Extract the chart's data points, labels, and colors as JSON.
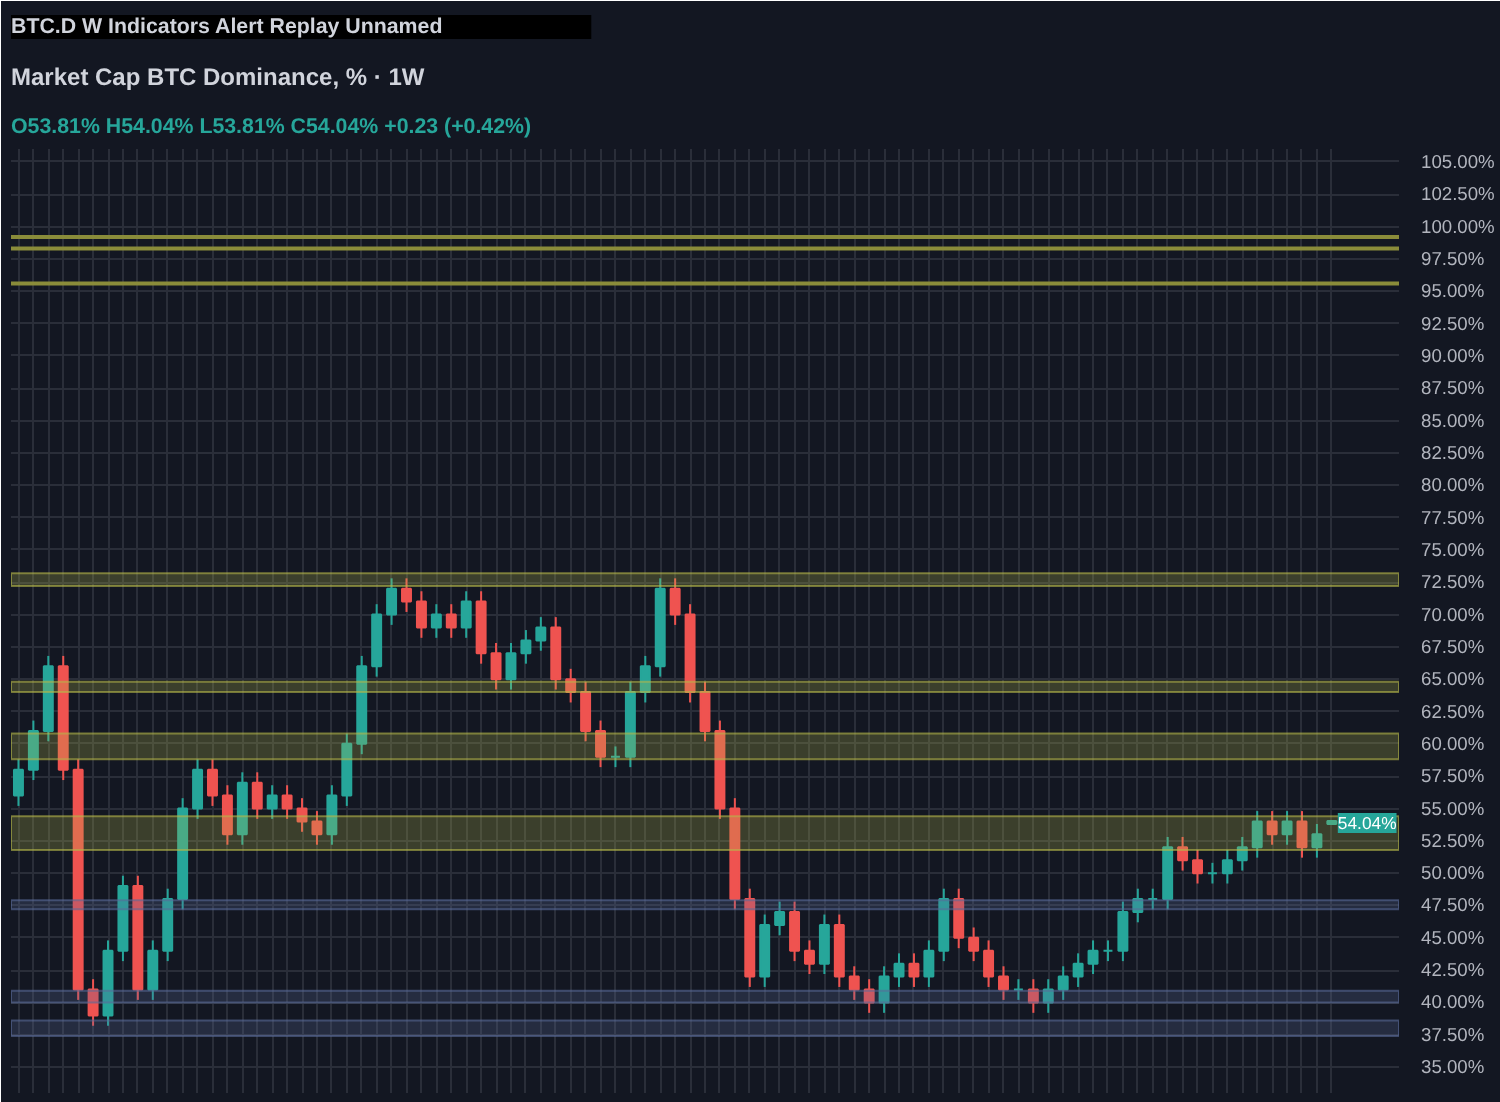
{
  "chart_data": {
    "type": "candlestick",
    "title": "Market Cap BTC Dominance, % · 1W",
    "subtitle": "O53.81% H54.04% L53.81% C54.04% +0.23 (+0.42%)",
    "annotations": [
      "BTC.D",
      "W",
      "Indicators",
      "Alert",
      "Replay",
      "Unnamed",
      {
        "text": "54.04%",
        "y": 54.04
      }
    ],
    "categories": [
      null,
      null,
      null,
      null,
      null,
      null,
      null,
      null,
      null,
      null,
      null,
      null,
      null,
      null,
      null,
      null,
      null,
      null,
      null,
      null,
      null,
      null,
      null,
      null,
      null,
      null,
      null,
      null,
      null,
      null,
      null,
      null,
      null,
      null,
      null,
      null,
      null,
      null,
      null,
      null,
      null,
      null,
      null,
      null,
      null,
      null,
      null,
      null,
      null,
      null,
      null,
      null,
      null,
      null,
      null,
      null,
      null,
      null,
      null,
      null,
      null,
      null,
      null,
      null,
      null,
      null,
      null,
      null,
      null,
      null,
      null,
      null,
      null,
      null,
      null,
      null,
      null,
      null,
      null,
      null,
      null,
      null,
      null,
      null,
      null,
      null,
      null,
      null,
      null
    ],
    "ohlc": [
      [
        56,
        58.8,
        55.2,
        58
      ],
      [
        58,
        61.8,
        57.2,
        61
      ],
      [
        61,
        66.8,
        60.2,
        66
      ],
      [
        66,
        66.8,
        57.2,
        58
      ],
      [
        58,
        58.8,
        40.2,
        41
      ],
      [
        41,
        41.8,
        38.2,
        39
      ],
      [
        39,
        44.8,
        38.2,
        44
      ],
      [
        44,
        49.8,
        43.2,
        49
      ],
      [
        49,
        49.8,
        40.2,
        41
      ],
      [
        41,
        44.8,
        40.2,
        44
      ],
      [
        44,
        48.8,
        43.2,
        48
      ],
      [
        48,
        55.8,
        47.2,
        55
      ],
      [
        55,
        58.8,
        54.2,
        58
      ],
      [
        58,
        58.8,
        55.2,
        56
      ],
      [
        56,
        56.8,
        52.2,
        53
      ],
      [
        53,
        57.8,
        52.2,
        57
      ],
      [
        57,
        57.8,
        54.2,
        55
      ],
      [
        55,
        56.8,
        54.2,
        56
      ],
      [
        56,
        56.8,
        54.2,
        55
      ],
      [
        55,
        55.8,
        53.2,
        54
      ],
      [
        54,
        54.8,
        52.2,
        53
      ],
      [
        53,
        56.8,
        52.2,
        56
      ],
      [
        56,
        60.8,
        55.2,
        60
      ],
      [
        60,
        66.8,
        59.2,
        66
      ],
      [
        66,
        70.8,
        65.2,
        70
      ],
      [
        70,
        72.8,
        69.2,
        72
      ],
      [
        72,
        72.8,
        70.2,
        71
      ],
      [
        71,
        71.8,
        68.2,
        69
      ],
      [
        69,
        70.8,
        68.2,
        70
      ],
      [
        70,
        70.8,
        68.2,
        69
      ],
      [
        69,
        71.8,
        68.2,
        71
      ],
      [
        71,
        71.8,
        66.2,
        67
      ],
      [
        67,
        67.8,
        64.2,
        65
      ],
      [
        65,
        67.8,
        64.2,
        67
      ],
      [
        67,
        68.8,
        66.2,
        68
      ],
      [
        68,
        69.8,
        67.2,
        69
      ],
      [
        69,
        69.8,
        64.2,
        65
      ],
      [
        65,
        65.8,
        63.2,
        64
      ],
      [
        64,
        64.8,
        60.2,
        61
      ],
      [
        61,
        61.8,
        58.2,
        59
      ],
      [
        59,
        59.8,
        58.2,
        59
      ],
      [
        59,
        64.8,
        58.2,
        64
      ],
      [
        64,
        66.8,
        63.2,
        66
      ],
      [
        66,
        72.8,
        65.2,
        72
      ],
      [
        72,
        72.8,
        69.2,
        70
      ],
      [
        70,
        70.8,
        63.2,
        64
      ],
      [
        64,
        64.8,
        60.2,
        61
      ],
      [
        61,
        61.8,
        54.2,
        55
      ],
      [
        55,
        55.8,
        47.2,
        48
      ],
      [
        48,
        48.8,
        41.2,
        42
      ],
      [
        42,
        46.8,
        41.2,
        46
      ],
      [
        46,
        47.8,
        45.2,
        47
      ],
      [
        47,
        47.8,
        43.2,
        44
      ],
      [
        44,
        44.8,
        42.2,
        43
      ],
      [
        43,
        46.8,
        42.2,
        46
      ],
      [
        46,
        46.8,
        41.2,
        42
      ],
      [
        42,
        42.8,
        40.2,
        41
      ],
      [
        41,
        41.8,
        39.2,
        40
      ],
      [
        40,
        42.8,
        39.2,
        42
      ],
      [
        42,
        43.8,
        41.2,
        43
      ],
      [
        43,
        43.8,
        41.2,
        42
      ],
      [
        42,
        44.8,
        41.2,
        44
      ],
      [
        44,
        48.8,
        43.2,
        48
      ],
      [
        48,
        48.8,
        44.2,
        45
      ],
      [
        45,
        45.8,
        43.2,
        44
      ],
      [
        44,
        44.8,
        41.2,
        42
      ],
      [
        42,
        42.8,
        40.2,
        41
      ],
      [
        41,
        41.8,
        40.2,
        41
      ],
      [
        41,
        41.8,
        39.2,
        40
      ],
      [
        40,
        41.8,
        39.2,
        41
      ],
      [
        41,
        42.8,
        40.2,
        42
      ],
      [
        42,
        43.8,
        41.2,
        43
      ],
      [
        43,
        44.8,
        42.2,
        44
      ],
      [
        44,
        44.8,
        43.2,
        44
      ],
      [
        44,
        47.8,
        43.2,
        47
      ],
      [
        47,
        48.8,
        46.2,
        48
      ],
      [
        48,
        48.8,
        47.2,
        48
      ],
      [
        48,
        52.8,
        47.2,
        52
      ],
      [
        52,
        52.8,
        50.2,
        51
      ],
      [
        51,
        51.8,
        49.2,
        50
      ],
      [
        50,
        50.8,
        49.2,
        50
      ],
      [
        50,
        51.8,
        49.2,
        51
      ],
      [
        51,
        52.8,
        50.2,
        52
      ],
      [
        52,
        54.8,
        51.2,
        54
      ],
      [
        54,
        54.8,
        52.2,
        53
      ],
      [
        53,
        54.8,
        52.2,
        54
      ],
      [
        54,
        54.8,
        51.2,
        52
      ],
      [
        52,
        53.8,
        51.2,
        53
      ],
      [
        53.81,
        54.04,
        53.81,
        54.04
      ]
    ],
    "colors": [
      "#26a69a",
      "#26a69a",
      "#26a69a",
      "#ef5350",
      "#ef5350",
      "#ef5350",
      "#26a69a",
      "#26a69a",
      "#ef5350",
      "#26a69a",
      "#26a69a",
      "#26a69a",
      "#26a69a",
      "#ef5350",
      "#ef5350",
      "#26a69a",
      "#ef5350",
      "#26a69a",
      "#ef5350",
      "#ef5350",
      "#ef5350",
      "#26a69a",
      "#26a69a",
      "#26a69a",
      "#26a69a",
      "#26a69a",
      "#ef5350",
      "#ef5350",
      "#26a69a",
      "#ef5350",
      "#26a69a",
      "#ef5350",
      "#ef5350",
      "#26a69a",
      "#26a69a",
      "#26a69a",
      "#ef5350",
      "#ef5350",
      "#ef5350",
      "#ef5350",
      "#26a69a",
      "#26a69a",
      "#26a69a",
      "#26a69a",
      "#ef5350",
      "#ef5350",
      "#ef5350",
      "#ef5350",
      "#ef5350",
      "#ef5350",
      "#26a69a",
      "#26a69a",
      "#ef5350",
      "#ef5350",
      "#26a69a",
      "#ef5350",
      "#ef5350",
      "#ef5350",
      "#26a69a",
      "#26a69a",
      "#ef5350",
      "#26a69a",
      "#26a69a",
      "#ef5350",
      "#ef5350",
      "#ef5350",
      "#ef5350",
      "#26a69a",
      "#ef5350",
      "#26a69a",
      "#26a69a",
      "#26a69a",
      "#26a69a",
      "#26a69a",
      "#26a69a",
      "#26a69a",
      "#26a69a",
      "#26a69a",
      "#ef5350",
      "#ef5350",
      "#26a69a",
      "#26a69a",
      "#26a69a",
      "#26a69a",
      "#ef5350",
      "#26a69a",
      "#ef5350",
      "#26a69a",
      "#26a69a"
    ],
    "ylim": [
      33,
      106
    ],
    "yticks": [
      {
        "value": 35,
        "label": "35.00%"
      },
      {
        "value": 37.5,
        "label": "37.50%"
      },
      {
        "value": 40,
        "label": "40.00%"
      },
      {
        "value": 42.5,
        "label": "42.50%"
      },
      {
        "value": 45,
        "label": "45.00%"
      },
      {
        "value": 47.5,
        "label": "47.50%"
      },
      {
        "value": 50,
        "label": "50.00%"
      },
      {
        "value": 52.5,
        "label": "52.50%"
      },
      {
        "value": 55,
        "label": "55.00%"
      },
      {
        "value": 57.5,
        "label": "57.50%"
      },
      {
        "value": 60,
        "label": "60.00%"
      },
      {
        "value": 62.5,
        "label": "62.50%"
      },
      {
        "value": 65,
        "label": "65.00%"
      },
      {
        "value": 67.5,
        "label": "67.50%"
      },
      {
        "value": 70,
        "label": "70.00%"
      },
      {
        "value": 72.5,
        "label": "72.50%"
      },
      {
        "value": 75,
        "label": "75.00%"
      },
      {
        "value": 77.5,
        "label": "77.50%"
      },
      {
        "value": 80,
        "label": "80.00%"
      },
      {
        "value": 82.5,
        "label": "82.50%"
      },
      {
        "value": 85,
        "label": "85.00%"
      },
      {
        "value": 87.5,
        "label": "87.50%"
      },
      {
        "value": 90,
        "label": "90.00%"
      },
      {
        "value": 92.5,
        "label": "92.50%"
      },
      {
        "value": 95,
        "label": "95.00%"
      },
      {
        "value": 97.5,
        "label": "97.50%"
      },
      {
        "value": 100,
        "label": "100.00%"
      },
      {
        "value": 102.5,
        "label": "102.50%"
      },
      {
        "value": 105,
        "label": "105.00%"
      }
    ],
    "bands": [
      {
        "axis": "y",
        "from": 72.2,
        "to": 73.2,
        "color": "#b5b84a"
      },
      {
        "axis": "y",
        "from": 64,
        "to": 64.8,
        "color": "#b5b84a"
      },
      {
        "axis": "y",
        "from": 58.8,
        "to": 60.8,
        "color": "#b5b84a"
      },
      {
        "axis": "y",
        "from": 51.8,
        "to": 54.4,
        "color": "#b5b84a"
      },
      {
        "axis": "y",
        "from": 47.2,
        "to": 47.9,
        "color": "#5a6a9a"
      },
      {
        "axis": "y",
        "from": 40,
        "to": 40.9,
        "color": "#5a6a9a"
      },
      {
        "axis": "y",
        "from": 37.4,
        "to": 38.6,
        "color": "#5a6a9a"
      }
    ],
    "ref_lines": [
      {
        "axis": "y",
        "value": 99.2,
        "color": "#8a8c3a"
      },
      {
        "axis": "y",
        "value": 98.3,
        "color": "#8a8c3a"
      },
      {
        "axis": "y",
        "value": 95.6,
        "color": "#8a8c3a"
      }
    ],
    "grid": true,
    "tick_labels": "y"
  }
}
